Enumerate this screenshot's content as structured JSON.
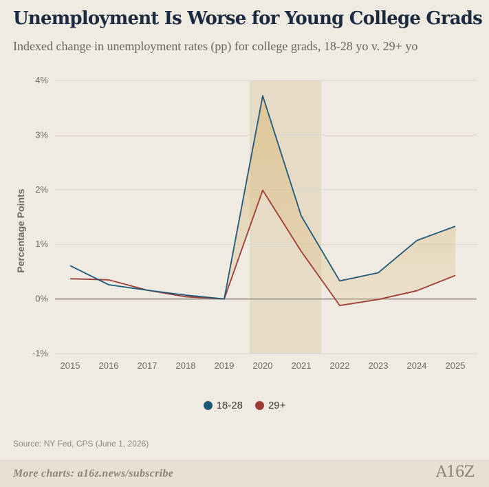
{
  "header": {
    "title": "Unemployment Is Worse for Young College Grads",
    "subtitle": "Indexed change in unemployment rates (pp) for college grads, 18-28 yo v. 29+ yo"
  },
  "colors": {
    "series_18_28": "#1E5878",
    "series_29_plus": "#9E3A34",
    "shade_band": "#E4D8C2",
    "fill_gap": "#DCC08A",
    "grid": "#D9D3C8",
    "zero_line": "#A8A296"
  },
  "chart_data": {
    "type": "line",
    "title": "Unemployment Is Worse for Young College Grads",
    "subtitle": "Indexed change in unemployment rates (pp) for college grads, 18-28 yo v. 29+ yo",
    "xlabel": "",
    "ylabel": "Percentage Points",
    "x": [
      "2015",
      "2016",
      "2017",
      "2018",
      "2019",
      "2020",
      "2021",
      "2022",
      "2023",
      "2024",
      "2025"
    ],
    "ylim": [
      -1,
      4
    ],
    "yticks": [
      -1,
      0,
      1,
      2,
      3,
      4
    ],
    "ytick_labels": [
      "-1%",
      "0%",
      "1%",
      "2%",
      "3%",
      "4%"
    ],
    "grid": true,
    "legend_position": "bottom-center",
    "shaded_region": {
      "from": "2020",
      "to": "2021"
    },
    "series": [
      {
        "name": "18-28",
        "values": [
          0.61,
          0.26,
          0.16,
          0.07,
          0.0,
          3.72,
          1.52,
          0.33,
          0.48,
          1.07,
          1.33
        ]
      },
      {
        "name": "29+",
        "values": [
          0.37,
          0.35,
          0.16,
          0.04,
          0.0,
          1.99,
          0.87,
          -0.12,
          -0.01,
          0.15,
          0.43
        ]
      }
    ]
  },
  "source": "Source: NY Fed, CPS (June 1, 2026)",
  "footer": {
    "cta": "More charts: a16z.news/subscribe",
    "logo": "A16Z"
  }
}
